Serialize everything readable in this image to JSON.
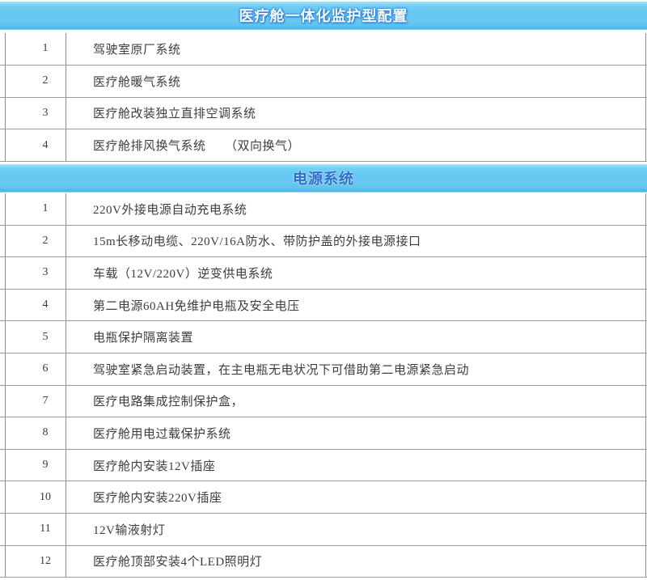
{
  "page": {
    "background": "#ffffff",
    "banner_color": "#67c9f2",
    "divider_color": "#9c9c9c",
    "header1_text_color": "#f2faff",
    "header2_text_color": "#2e6fc9"
  },
  "sections": [
    {
      "title": "医疗舱一体化监护型配置",
      "title_variant": "light",
      "rows": [
        {
          "num": "1",
          "text": "驾驶室原厂系统"
        },
        {
          "num": "2",
          "text": "医疗舱暖气系统"
        },
        {
          "num": "3",
          "text": "医疗舱改装独立直排空调系统"
        },
        {
          "num": "4",
          "text": "医疗舱排风换气系统　　（双向换气）"
        }
      ]
    },
    {
      "title": "电源系统",
      "title_variant": "blue",
      "rows": [
        {
          "num": "1",
          "text": "220V外接电源自动充电系统"
        },
        {
          "num": "2",
          "text": "15m长移动电缆、220V/16A防水、带防护盖的外接电源接口"
        },
        {
          "num": "3",
          "text": "车载（12V/220V）逆变供电系统"
        },
        {
          "num": "4",
          "text": "第二电源60AH免维护电瓶及安全电压"
        },
        {
          "num": "5",
          "text": "电瓶保护隔离装置"
        },
        {
          "num": "6",
          "text": "驾驶室紧急启动装置，在主电瓶无电状况下可借助第二电源紧急启动"
        },
        {
          "num": "7",
          "text": "医疗电路集成控制保护盒，"
        },
        {
          "num": "8",
          "text": "医疗舱用电过载保护系统"
        },
        {
          "num": "9",
          "text": "医疗舱内安装12V插座"
        },
        {
          "num": "10",
          "text": "医疗舱内安装220V插座"
        },
        {
          "num": "11",
          "text": "12V输液射灯"
        },
        {
          "num": "12",
          "text": "医疗舱顶部安装4个LED照明灯"
        }
      ]
    }
  ]
}
